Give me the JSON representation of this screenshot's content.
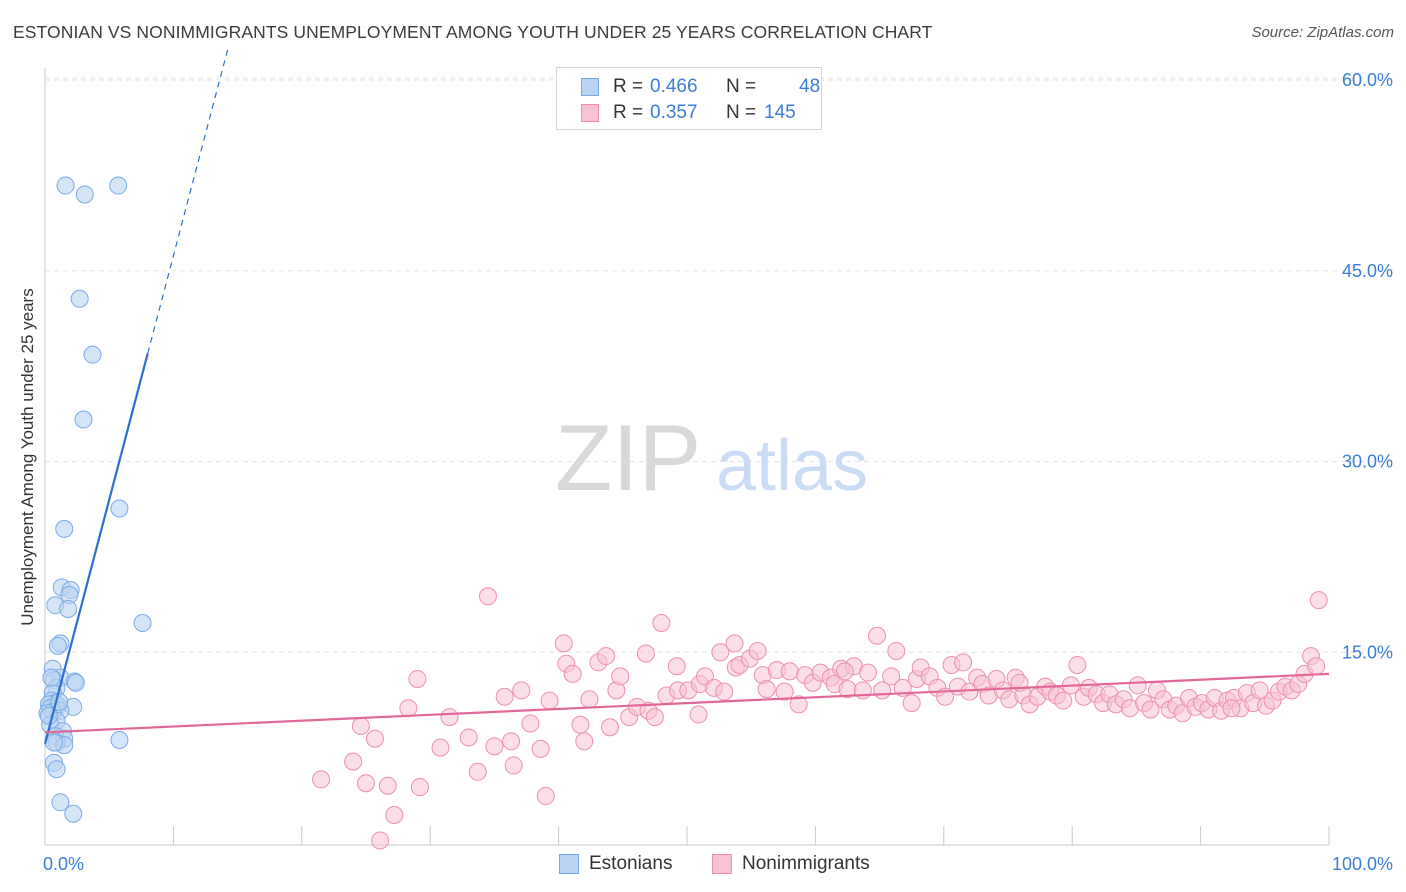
{
  "title": "ESTONIAN VS NONIMMIGRANTS UNEMPLOYMENT AMONG YOUTH UNDER 25 YEARS CORRELATION CHART",
  "source": "Source: ZipAtlas.com",
  "watermark": {
    "zip": "ZIP",
    "atlas": "atlas"
  },
  "legend": {
    "rows": [
      {
        "r_label": "R =",
        "r_value": "0.466",
        "n_label": "N =",
        "n_value": "48"
      },
      {
        "r_label": "R =",
        "r_value": "0.357",
        "n_label": "N =",
        "n_value": "145"
      }
    ]
  },
  "bottom_legend": {
    "estonians": "Estonians",
    "nonimmigrants": "Nonimmigrants"
  },
  "colors": {
    "estonians_fill": "#b9d3f4",
    "estonians_stroke": "#7aaae6",
    "estonians_line": "#2f6fd0",
    "nonimmigrants_fill": "#f8c2d4",
    "nonimmigrants_stroke": "#ee8fb0",
    "nonimmigrants_line": "#e2689a",
    "axis_label": "#3b7dd8"
  },
  "chart_data": {
    "type": "scatter",
    "title": "ESTONIAN VS NONIMMIGRANTS UNEMPLOYMENT AMONG YOUTH UNDER 25 YEARS CORRELATION CHART",
    "xlabel": "",
    "ylabel": "Unemployment Among Youth under 25 years",
    "xlim": [
      0,
      100
    ],
    "ylim": [
      0,
      63
    ],
    "x_tick_labels": [
      {
        "value": 0,
        "label": "0.0%"
      },
      {
        "value": 100,
        "label": "100.0%"
      }
    ],
    "y_tick_labels": [
      {
        "value": 15,
        "label": "15.0%"
      },
      {
        "value": 30,
        "label": "30.0%"
      },
      {
        "value": 45,
        "label": "45.0%"
      },
      {
        "value": 60,
        "label": "60.0%"
      }
    ],
    "grid": true,
    "series": [
      {
        "name": "Estonians",
        "R": 0.466,
        "N": 48,
        "trend": {
          "x0": 0,
          "y0": 7.8,
          "x1": 8.0,
          "y1": 38.5,
          "dash_to_x": 14.3
        },
        "points": [
          [
            1.6,
            51.7
          ],
          [
            3.1,
            51.0
          ],
          [
            5.7,
            51.7
          ],
          [
            2.7,
            42.8
          ],
          [
            3.7,
            38.4
          ],
          [
            3.0,
            33.3
          ],
          [
            5.8,
            26.3
          ],
          [
            1.5,
            24.7
          ],
          [
            1.3,
            20.1
          ],
          [
            2.0,
            19.9
          ],
          [
            1.9,
            19.5
          ],
          [
            0.8,
            18.7
          ],
          [
            1.8,
            18.4
          ],
          [
            7.6,
            17.3
          ],
          [
            1.2,
            15.7
          ],
          [
            1.0,
            15.5
          ],
          [
            0.6,
            13.7
          ],
          [
            1.2,
            13.0
          ],
          [
            0.7,
            12.8
          ],
          [
            2.3,
            12.7
          ],
          [
            2.4,
            12.6
          ],
          [
            0.9,
            12.2
          ],
          [
            0.6,
            11.8
          ],
          [
            0.5,
            11.2
          ],
          [
            0.8,
            11.0
          ],
          [
            0.3,
            10.9
          ],
          [
            1.0,
            10.8
          ],
          [
            0.4,
            10.6
          ],
          [
            2.2,
            10.7
          ],
          [
            1.2,
            10.4
          ],
          [
            0.6,
            10.3
          ],
          [
            0.2,
            10.2
          ],
          [
            0.9,
            9.6
          ],
          [
            0.4,
            9.3
          ],
          [
            1.4,
            8.8
          ],
          [
            0.8,
            8.4
          ],
          [
            1.5,
            8.2
          ],
          [
            0.9,
            7.9
          ],
          [
            5.8,
            8.1
          ],
          [
            1.5,
            7.7
          ],
          [
            0.7,
            6.3
          ],
          [
            0.9,
            5.8
          ],
          [
            1.2,
            3.2
          ],
          [
            2.2,
            2.3
          ],
          [
            0.3,
            10.0
          ],
          [
            0.5,
            13.0
          ],
          [
            1.1,
            11.1
          ],
          [
            0.7,
            7.9
          ]
        ]
      },
      {
        "name": "Nonimmigrants",
        "R": 0.357,
        "N": 145,
        "trend": {
          "x0": 0,
          "y0": 8.7,
          "x1": 100,
          "y1": 13.3
        },
        "points": [
          [
            21.5,
            5.0
          ],
          [
            24.0,
            6.4
          ],
          [
            24.6,
            9.2
          ],
          [
            25.0,
            4.7
          ],
          [
            25.7,
            8.2
          ],
          [
            26.1,
            0.2
          ],
          [
            26.7,
            4.5
          ],
          [
            27.2,
            2.2
          ],
          [
            28.3,
            10.6
          ],
          [
            29.0,
            12.9
          ],
          [
            29.2,
            4.4
          ],
          [
            30.8,
            7.5
          ],
          [
            31.5,
            9.9
          ],
          [
            33.0,
            8.3
          ],
          [
            33.7,
            5.6
          ],
          [
            34.5,
            19.4
          ],
          [
            35.0,
            7.6
          ],
          [
            35.8,
            11.5
          ],
          [
            36.3,
            8.0
          ],
          [
            36.5,
            6.1
          ],
          [
            37.1,
            12.0
          ],
          [
            37.8,
            9.4
          ],
          [
            38.6,
            7.4
          ],
          [
            39.0,
            3.7
          ],
          [
            39.3,
            11.2
          ],
          [
            40.4,
            15.7
          ],
          [
            40.6,
            14.1
          ],
          [
            41.1,
            13.3
          ],
          [
            41.7,
            9.3
          ],
          [
            42.0,
            8.0
          ],
          [
            42.4,
            11.3
          ],
          [
            43.1,
            14.2
          ],
          [
            43.7,
            14.7
          ],
          [
            44.0,
            9.1
          ],
          [
            44.5,
            12.0
          ],
          [
            44.8,
            13.1
          ],
          [
            45.5,
            9.9
          ],
          [
            46.1,
            10.7
          ],
          [
            46.8,
            14.9
          ],
          [
            47.0,
            10.4
          ],
          [
            47.5,
            9.9
          ],
          [
            48.0,
            17.3
          ],
          [
            48.4,
            11.6
          ],
          [
            49.2,
            13.9
          ],
          [
            49.3,
            12.0
          ],
          [
            50.1,
            12.0
          ],
          [
            50.9,
            10.1
          ],
          [
            51.0,
            12.5
          ],
          [
            51.4,
            13.1
          ],
          [
            52.1,
            12.2
          ],
          [
            52.6,
            15.0
          ],
          [
            52.9,
            11.9
          ],
          [
            53.7,
            15.7
          ],
          [
            53.8,
            13.8
          ],
          [
            54.1,
            14.0
          ],
          [
            54.9,
            14.5
          ],
          [
            55.5,
            15.1
          ],
          [
            55.9,
            13.2
          ],
          [
            56.2,
            12.1
          ],
          [
            57.0,
            13.6
          ],
          [
            57.6,
            11.9
          ],
          [
            58.0,
            13.5
          ],
          [
            58.7,
            10.9
          ],
          [
            59.2,
            13.2
          ],
          [
            59.8,
            12.6
          ],
          [
            60.4,
            13.4
          ],
          [
            61.2,
            13.0
          ],
          [
            61.5,
            12.5
          ],
          [
            62.0,
            13.7
          ],
          [
            62.5,
            12.1
          ],
          [
            63.0,
            13.9
          ],
          [
            63.7,
            12.0
          ],
          [
            64.1,
            13.4
          ],
          [
            64.8,
            16.3
          ],
          [
            65.2,
            12.0
          ],
          [
            65.9,
            13.1
          ],
          [
            66.3,
            15.1
          ],
          [
            66.8,
            12.2
          ],
          [
            67.5,
            11.0
          ],
          [
            67.9,
            12.9
          ],
          [
            68.2,
            13.8
          ],
          [
            68.9,
            13.1
          ],
          [
            69.5,
            12.2
          ],
          [
            70.1,
            11.5
          ],
          [
            70.6,
            14.0
          ],
          [
            71.1,
            12.3
          ],
          [
            71.5,
            14.2
          ],
          [
            72.0,
            11.9
          ],
          [
            72.6,
            13.0
          ],
          [
            73.0,
            12.5
          ],
          [
            73.5,
            11.6
          ],
          [
            74.1,
            12.9
          ],
          [
            74.6,
            12.0
          ],
          [
            75.1,
            11.3
          ],
          [
            75.6,
            13.0
          ],
          [
            76.2,
            11.6
          ],
          [
            76.7,
            10.9
          ],
          [
            77.3,
            11.5
          ],
          [
            77.9,
            12.3
          ],
          [
            78.3,
            11.9
          ],
          [
            78.8,
            11.6
          ],
          [
            79.3,
            11.2
          ],
          [
            79.9,
            12.4
          ],
          [
            80.4,
            14.0
          ],
          [
            80.9,
            11.5
          ],
          [
            81.3,
            12.2
          ],
          [
            81.9,
            11.7
          ],
          [
            82.4,
            11.0
          ],
          [
            82.9,
            11.7
          ],
          [
            83.4,
            10.9
          ],
          [
            84.0,
            11.3
          ],
          [
            84.5,
            10.6
          ],
          [
            85.1,
            12.4
          ],
          [
            85.6,
            11.0
          ],
          [
            86.1,
            10.5
          ],
          [
            86.6,
            12.0
          ],
          [
            87.1,
            11.3
          ],
          [
            87.6,
            10.5
          ],
          [
            88.1,
            10.8
          ],
          [
            88.6,
            10.2
          ],
          [
            89.1,
            11.4
          ],
          [
            89.6,
            10.7
          ],
          [
            90.1,
            11.0
          ],
          [
            90.6,
            10.5
          ],
          [
            91.1,
            11.4
          ],
          [
            91.6,
            10.4
          ],
          [
            92.1,
            11.2
          ],
          [
            92.6,
            11.4
          ],
          [
            93.1,
            10.6
          ],
          [
            93.6,
            11.8
          ],
          [
            94.1,
            11.0
          ],
          [
            94.6,
            12.0
          ],
          [
            95.1,
            10.8
          ],
          [
            95.6,
            11.2
          ],
          [
            96.1,
            11.9
          ],
          [
            96.6,
            12.3
          ],
          [
            97.1,
            12.0
          ],
          [
            97.6,
            12.5
          ],
          [
            98.1,
            13.3
          ],
          [
            98.6,
            14.7
          ],
          [
            99.2,
            19.1
          ],
          [
            99.0,
            13.9
          ],
          [
            92.4,
            10.6
          ],
          [
            75.9,
            12.6
          ],
          [
            62.3,
            13.5
          ]
        ]
      }
    ]
  }
}
